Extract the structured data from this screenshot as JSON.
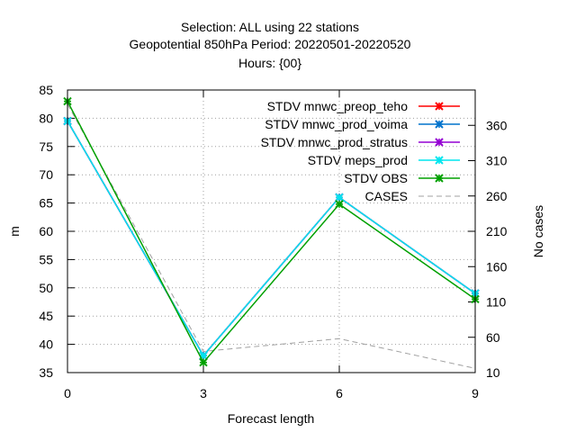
{
  "chart_data": {
    "type": "line",
    "title_lines": [
      "Selection: ALL using     22 stations",
      "Geopotential 850hPa   Period: 20220501-20220520",
      "Hours: {00}"
    ],
    "xlabel": "Forecast length",
    "ylabel": "m",
    "y2label": "No cases",
    "x": [
      0,
      3,
      6,
      9
    ],
    "xlim": [
      0,
      9
    ],
    "xticks": [
      0,
      3,
      6,
      9
    ],
    "ylim": [
      35,
      85
    ],
    "yticks": [
      35,
      40,
      45,
      50,
      55,
      60,
      65,
      70,
      75,
      80,
      85
    ],
    "y2lim": [
      10,
      410
    ],
    "y2ticks": [
      10,
      60,
      110,
      160,
      210,
      260,
      310,
      360
    ],
    "grid": true,
    "legend_position": "top-right",
    "series": [
      {
        "name": "STDV mnwc_preop_teho",
        "color": "#ff0000",
        "marker": "x",
        "dashed": false,
        "axis": "y",
        "values": [
          79.5,
          38.0,
          66.0,
          49.0
        ]
      },
      {
        "name": "STDV mnwc_prod_voima",
        "color": "#0073cc",
        "marker": "x",
        "dashed": false,
        "axis": "y",
        "values": [
          79.5,
          38.0,
          66.0,
          49.0
        ]
      },
      {
        "name": "STDV mnwc_prod_stratus",
        "color": "#9400d3",
        "marker": "x",
        "dashed": false,
        "axis": "y",
        "values": [
          79.5,
          38.0,
          66.0,
          49.0
        ]
      },
      {
        "name": "STDV meps_prod",
        "color": "#00e5ee",
        "marker": "x",
        "dashed": false,
        "axis": "y",
        "values": [
          79.5,
          38.0,
          66.0,
          49.0
        ]
      },
      {
        "name": "STDV OBS",
        "color": "#00a000",
        "marker": "x",
        "dashed": false,
        "axis": "y",
        "values": [
          83.0,
          36.8,
          64.8,
          48.0
        ]
      },
      {
        "name": "CASES",
        "color": "#a0a0a0",
        "marker": "",
        "dashed": true,
        "axis": "y2",
        "values": [
          390,
          40,
          58,
          16
        ]
      }
    ]
  }
}
